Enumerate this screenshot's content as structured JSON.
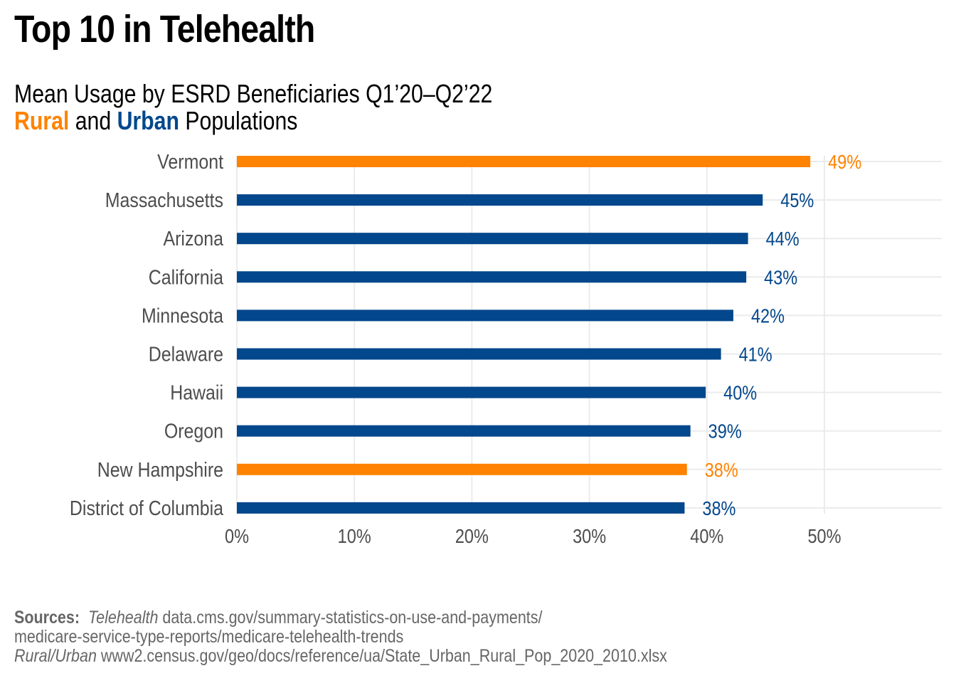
{
  "title": "Top 10 in Telehealth",
  "subtitle": {
    "line1": "Mean Usage by ESRD Beneficiaries Q1’20–Q2’22",
    "rural_word": "Rural",
    "and_word": " and ",
    "urban_word": "Urban",
    "populations_word": " Populations"
  },
  "colors": {
    "rural": "#FF8200",
    "urban": "#03478C",
    "label_text": "#4D4D4D",
    "grid": "#EBEBEB"
  },
  "chart_data": {
    "type": "bar",
    "orientation": "horizontal",
    "title": "Top 10 in Telehealth",
    "subtitle": "Mean Usage by ESRD Beneficiaries Q1’20–Q2’22 — Rural and Urban Populations",
    "xlabel": "",
    "ylabel": "",
    "xlim": [
      0,
      60
    ],
    "x_ticks": [
      0,
      10,
      20,
      30,
      40,
      50
    ],
    "x_tick_labels": [
      "0%",
      "10%",
      "20%",
      "30%",
      "40%",
      "50%"
    ],
    "grid": true,
    "legend": "encoded in subtitle (Rural = orange, Urban = blue)",
    "categories": [
      "Vermont",
      "Massachusetts",
      "Arizona",
      "California",
      "Minnesota",
      "Delaware",
      "Hawaii",
      "Oregon",
      "New Hampshire",
      "District of Columbia"
    ],
    "values": [
      48.8,
      44.75,
      43.5,
      43.35,
      42.25,
      41.2,
      39.9,
      38.6,
      38.3,
      38.1
    ],
    "data_labels": [
      "49%",
      "45%",
      "44%",
      "43%",
      "42%",
      "41%",
      "40%",
      "39%",
      "38%",
      "38%"
    ],
    "groups": [
      "Rural",
      "Urban",
      "Urban",
      "Urban",
      "Urban",
      "Urban",
      "Urban",
      "Urban",
      "Rural",
      "Urban"
    ]
  },
  "sources": {
    "label": "Sources:",
    "telehealth_label": "Telehealth",
    "telehealth_url_line1": " data.cms.gov/summary-statistics-on-use-and-payments/",
    "telehealth_url_line2": "medicare-service-type-reports/medicare-telehealth-trends",
    "rural_urban_label": "Rural/Urban",
    "rural_urban_url": " www2.census.gov/geo/docs/reference/ua/State_Urban_Rural_Pop_2020_2010.xlsx"
  }
}
